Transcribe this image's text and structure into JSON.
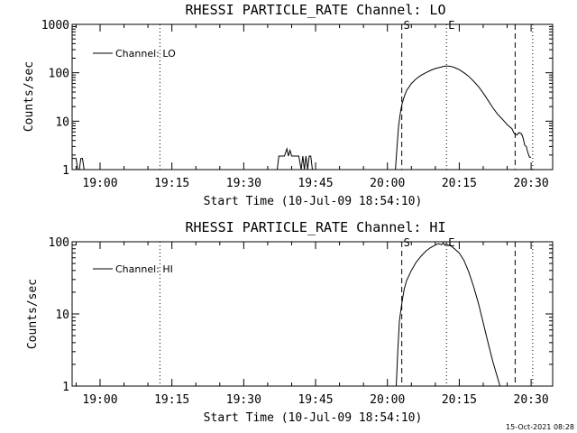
{
  "chart_data": [
    {
      "type": "line",
      "title": "RHESSI PARTICLE_RATE Channel: LO",
      "xlabel": "Start Time (10-Jul-09 18:54:10)",
      "ylabel": "Counts/sec",
      "yscale": "log",
      "ylim": [
        1,
        1000
      ],
      "xlim": [
        "18:54:10",
        "20:34:30"
      ],
      "xticks": [
        "19:00",
        "19:15",
        "19:30",
        "19:45",
        "20:00",
        "20:15",
        "20:30"
      ],
      "yticks": [
        "1",
        "10",
        "100",
        "1000"
      ],
      "legend": "top-left",
      "markers": [
        {
          "label": "S",
          "time": "20:03:00",
          "style": "dashed"
        },
        {
          "label": "E",
          "time": "20:12:20",
          "style": "dotted"
        }
      ],
      "extra_lines": [
        {
          "time": "19:12:30",
          "style": "dotted"
        },
        {
          "time": "20:26:40",
          "style": "dashed"
        },
        {
          "time": "20:30:20",
          "style": "dotted"
        }
      ],
      "series": [
        {
          "name": "Channel: LO",
          "x": [
            "18:54:10",
            "18:55:00",
            "18:55:20",
            "18:55:40",
            "18:56:00",
            "18:56:20",
            "18:56:40",
            "18:57:00",
            "19:37:00",
            "19:37:20",
            "19:38:30",
            "19:39:00",
            "19:39:20",
            "19:39:40",
            "19:40:00",
            "19:40:20",
            "19:41:30",
            "19:42:00",
            "19:42:20",
            "19:42:40",
            "19:43:00",
            "19:43:20",
            "19:43:40",
            "19:44:00",
            "19:44:20",
            "19:44:40",
            "19:45:00",
            "20:01:40",
            "20:02:00",
            "20:02:20",
            "20:02:40",
            "20:03:00",
            "20:03:30",
            "20:04:00",
            "20:05:00",
            "20:06:00",
            "20:07:00",
            "20:08:00",
            "20:09:00",
            "20:10:00",
            "20:11:00",
            "20:12:00",
            "20:12:40",
            "20:13:20",
            "20:14:00",
            "20:15:00",
            "20:16:00",
            "20:17:00",
            "20:18:00",
            "20:19:00",
            "20:20:00",
            "20:21:00",
            "20:22:00",
            "20:23:00",
            "20:24:00",
            "20:25:00",
            "20:26:00",
            "20:26:30",
            "20:27:00",
            "20:27:30",
            "20:28:00",
            "20:28:20",
            "20:28:40",
            "20:29:00",
            "20:29:20",
            "20:29:40",
            "20:30:00"
          ],
          "y": [
            1.7,
            1.7,
            1.0,
            1.0,
            1.7,
            1.7,
            1.0,
            1.0,
            1.0,
            1.9,
            1.9,
            2.7,
            1.9,
            2.5,
            1.9,
            1.9,
            1.9,
            1.0,
            1.9,
            1.0,
            1.9,
            1.0,
            1.9,
            1.9,
            1.0,
            1.0,
            1.0,
            1.0,
            3,
            8,
            14,
            22,
            32,
            43,
            60,
            75,
            88,
            100,
            112,
            122,
            130,
            137,
            138,
            135,
            128,
            116,
            100,
            84,
            67,
            52,
            38,
            27,
            19,
            14,
            11,
            8.5,
            7,
            5.5,
            5.2,
            5.8,
            5.5,
            4.5,
            3.2,
            3.0,
            2.2,
            1.8,
            1.8
          ]
        }
      ]
    },
    {
      "type": "line",
      "title": "RHESSI PARTICLE_RATE Channel: HI",
      "xlabel": "Start Time (10-Jul-09 18:54:10)",
      "ylabel": "Counts/sec",
      "yscale": "log",
      "ylim": [
        1,
        100
      ],
      "xlim": [
        "18:54:10",
        "20:34:30"
      ],
      "xticks": [
        "19:00",
        "19:15",
        "19:30",
        "19:45",
        "20:00",
        "20:15",
        "20:30"
      ],
      "yticks": [
        "1",
        "10",
        "100"
      ],
      "legend": "top-left",
      "markers": [
        {
          "label": "S",
          "time": "20:03:00",
          "style": "dashed"
        },
        {
          "label": "E",
          "time": "20:12:20",
          "style": "dotted"
        }
      ],
      "extra_lines": [
        {
          "time": "19:12:30",
          "style": "dotted"
        },
        {
          "time": "20:26:40",
          "style": "dashed"
        },
        {
          "time": "20:30:20",
          "style": "dotted"
        }
      ],
      "series": [
        {
          "name": "Channel: HI",
          "x": [
            "20:01:50",
            "20:02:10",
            "20:02:30",
            "20:03:00",
            "20:03:30",
            "20:04:00",
            "20:05:00",
            "20:06:00",
            "20:07:00",
            "20:08:00",
            "20:09:00",
            "20:10:00",
            "20:10:40",
            "20:11:20",
            "20:11:40",
            "20:12:00",
            "20:12:20",
            "20:12:40",
            "20:13:00",
            "20:13:30",
            "20:14:00",
            "20:15:00",
            "20:16:00",
            "20:17:00",
            "20:18:00",
            "20:19:00",
            "20:20:00",
            "20:21:00",
            "20:22:00",
            "20:23:00",
            "20:23:30"
          ],
          "y": [
            1.0,
            3,
            8,
            14,
            22,
            29,
            40,
            52,
            63,
            74,
            83,
            90,
            94,
            91,
            97,
            89,
            95,
            88,
            92,
            85,
            80,
            70,
            55,
            38,
            24,
            14,
            7.5,
            4,
            2.2,
            1.3,
            1.0
          ]
        }
      ]
    }
  ],
  "footer": {
    "timestamp": "15-Oct-2021 08:28"
  },
  "colors": {
    "background": "#ffffff",
    "foreground": "#000000"
  }
}
